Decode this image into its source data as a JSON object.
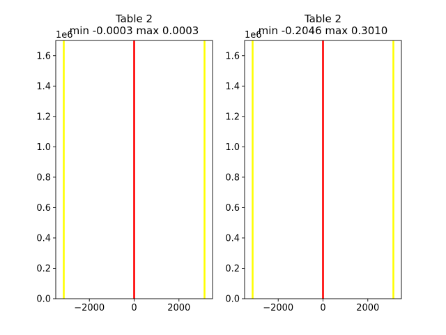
{
  "chart_data": [
    {
      "type": "histogram",
      "title": "Table 2",
      "subtitle": "min -0.0003 max 0.0003",
      "y_offset_label": "1e6",
      "xlim": [
        -3500,
        3500
      ],
      "ylim": [
        0,
        1.7
      ],
      "x_ticks": [
        -2000,
        0,
        2000
      ],
      "x_tick_labels": [
        "−2000",
        "0",
        "2000"
      ],
      "y_ticks": [
        0.0,
        0.2,
        0.4,
        0.6,
        0.8,
        1.0,
        1.2,
        1.4,
        1.6
      ],
      "y_tick_labels": [
        "0.0",
        "0.2",
        "0.4",
        "0.6",
        "0.8",
        "1.0",
        "1.2",
        "1.4",
        "1.6"
      ],
      "vlines": [
        {
          "x": -3142,
          "color": "#ffff00"
        },
        {
          "x": 0,
          "color": "#ff0000"
        },
        {
          "x": 3142,
          "color": "#ffff00"
        }
      ],
      "grid": false
    },
    {
      "type": "histogram",
      "title": "Table 2",
      "subtitle": "min -0.2046 max 0.3010",
      "y_offset_label": "1e6",
      "xlim": [
        -3500,
        3500
      ],
      "ylim": [
        0,
        1.7
      ],
      "x_ticks": [
        -2000,
        0,
        2000
      ],
      "x_tick_labels": [
        "−2000",
        "0",
        "2000"
      ],
      "y_ticks": [
        0.0,
        0.2,
        0.4,
        0.6,
        0.8,
        1.0,
        1.2,
        1.4,
        1.6
      ],
      "y_tick_labels": [
        "0.0",
        "0.2",
        "0.4",
        "0.6",
        "0.8",
        "1.0",
        "1.2",
        "1.4",
        "1.6"
      ],
      "vlines": [
        {
          "x": -3142,
          "color": "#ffff00"
        },
        {
          "x": 0,
          "color": "#ff0000"
        },
        {
          "x": 3142,
          "color": "#ffff00"
        }
      ],
      "grid": false
    }
  ]
}
